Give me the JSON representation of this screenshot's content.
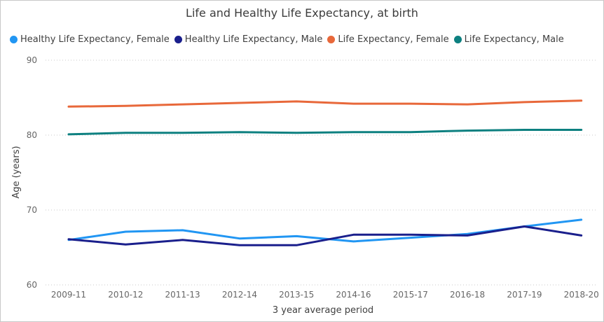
{
  "chart_data": {
    "type": "line",
    "title": "Life and Healthy Life Expectancy, at birth",
    "xlabel": "3 year average period",
    "ylabel": "Age (years)",
    "ylim": [
      60,
      90
    ],
    "yticks": [
      "60",
      "70",
      "80",
      "90"
    ],
    "grid": "horizontal dotted",
    "legend_position": "top",
    "categories": [
      "2009-11",
      "2010-12",
      "2011-13",
      "2012-14",
      "2013-15",
      "2014-16",
      "2015-17",
      "2016-18",
      "2017-19",
      "2018-20"
    ],
    "series": [
      {
        "name": "Healthy Life Expectancy, Female",
        "color": "#2196f3",
        "values": [
          66.0,
          67.1,
          67.3,
          66.2,
          66.5,
          65.8,
          66.3,
          66.8,
          67.8,
          68.7
        ]
      },
      {
        "name": "Healthy Life Expectancy, Male",
        "color": "#1a1f8c",
        "values": [
          66.1,
          65.4,
          66.0,
          65.3,
          65.3,
          66.7,
          66.7,
          66.6,
          67.8,
          66.6
        ]
      },
      {
        "name": "Life Expectancy, Female",
        "color": "#e8683a",
        "values": [
          83.8,
          83.9,
          84.1,
          84.3,
          84.5,
          84.2,
          84.2,
          84.1,
          84.4,
          84.6
        ]
      },
      {
        "name": "Life Expectancy, Male",
        "color": "#0d8080",
        "values": [
          80.1,
          80.3,
          80.3,
          80.4,
          80.3,
          80.4,
          80.4,
          80.6,
          80.7,
          80.7
        ]
      }
    ]
  }
}
